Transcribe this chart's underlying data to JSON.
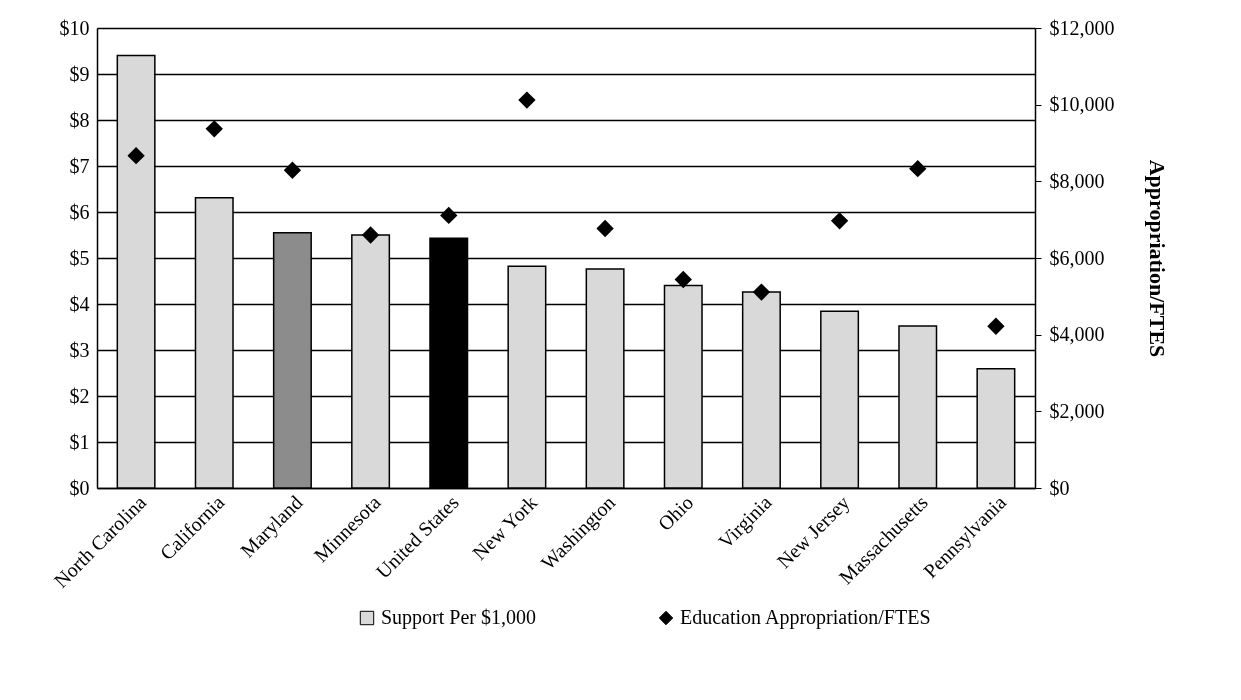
{
  "chart_data": {
    "type": "bar",
    "categories": [
      "North Carolina",
      "California",
      "Maryland",
      "Minnesota",
      "United States",
      "New York",
      "Washington",
      "Ohio",
      "Virginia",
      "New Jersey",
      "Massachusetts",
      "Pennsylvania"
    ],
    "series": [
      {
        "name": "Support Per $1,000",
        "color": "#d9d9d9",
        "colors": [
          "#d9d9d9",
          "#d9d9d9",
          "#8c8c8c",
          "#d9d9d9",
          "#000000",
          "#d9d9d9",
          "#d9d9d9",
          "#d9d9d9",
          "#d9d9d9",
          "#d9d9d9",
          "#d9d9d9",
          "#d9d9d9"
        ],
        "values": [
          9.4,
          6.31,
          5.55,
          5.5,
          5.43,
          4.82,
          4.76,
          4.4,
          4.26,
          3.84,
          3.52,
          2.59
        ]
      },
      {
        "name": "Education Appropriation/FTES",
        "type": "scatter",
        "axis": "y2",
        "color": "#000000",
        "marker": "diamond",
        "values": [
          8670,
          9370,
          8290,
          6600,
          7110,
          10120,
          6770,
          5440,
          5110,
          6970,
          8330,
          4220
        ]
      }
    ],
    "y2label": "Appropriation/FTES",
    "ylim": [
      0,
      10
    ],
    "yticks": [
      {
        "value": 0,
        "label": "$0"
      },
      {
        "value": 1,
        "label": "$1"
      },
      {
        "value": 2,
        "label": "$2"
      },
      {
        "value": 3,
        "label": "$3"
      },
      {
        "value": 4,
        "label": "$4"
      },
      {
        "value": 5,
        "label": "$5"
      },
      {
        "value": 6,
        "label": "$6"
      },
      {
        "value": 7,
        "label": "$7"
      },
      {
        "value": 8,
        "label": "$8"
      },
      {
        "value": 9,
        "label": "$9"
      },
      {
        "value": 10,
        "label": "$10"
      }
    ],
    "y2lim": [
      0,
      12000
    ],
    "y2ticks": [
      {
        "value": 0,
        "label": "$0"
      },
      {
        "value": 2000,
        "label": "$2,000"
      },
      {
        "value": 4000,
        "label": "$4,000"
      },
      {
        "value": 6000,
        "label": "$6,000"
      },
      {
        "value": 8000,
        "label": "$8,000"
      },
      {
        "value": 10000,
        "label": "$10,000"
      },
      {
        "value": 12000,
        "label": "$12,000"
      }
    ],
    "grid": "y",
    "legend": "bottom"
  }
}
